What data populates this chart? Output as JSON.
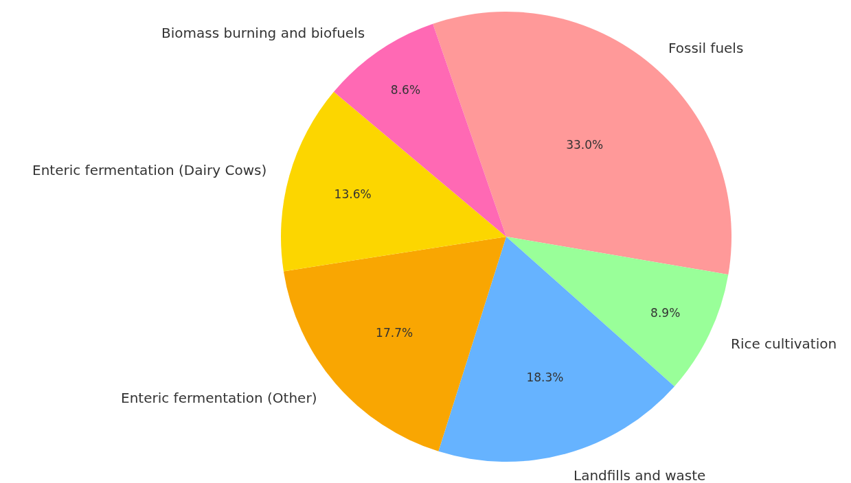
{
  "chart_data": {
    "type": "pie",
    "categories": [
      "Fossil fuels",
      "Rice cultivation",
      "Landfills and waste",
      "Enteric fermentation (Other)",
      "Enteric fermentation (Dairy Cows)",
      "Biomass burning and biofuels"
    ],
    "values": [
      33.0,
      8.9,
      18.3,
      17.7,
      13.6,
      8.6
    ],
    "colors": [
      "#ff9999",
      "#99ff99",
      "#66b3ff",
      "#f9a602",
      "#fcd600",
      "#ff69b4"
    ],
    "value_labels": [
      "33.0%",
      "8.9%",
      "18.3%",
      "17.7%",
      "13.6%",
      "8.6%"
    ],
    "legend": false
  }
}
